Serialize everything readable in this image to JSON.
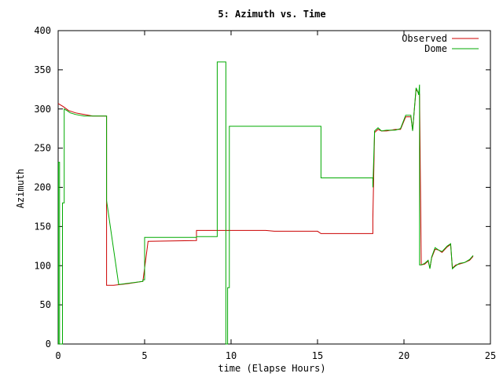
{
  "chart_data": {
    "type": "line",
    "title": "5: Azimuth vs. Time",
    "xlabel": "time (Elapse Hours)",
    "ylabel": "Azimuth",
    "xlim": [
      0,
      25
    ],
    "ylim": [
      0,
      400
    ],
    "xticks": [
      "0",
      "5",
      "10",
      "15",
      "20",
      "25"
    ],
    "yticks": [
      "0",
      "50",
      "100",
      "150",
      "200",
      "250",
      "300",
      "350",
      "400"
    ],
    "grid": false,
    "legend_position": "top-right",
    "series": [
      {
        "name": "Observed",
        "color": "#cc0000",
        "x": [
          0,
          0.3,
          0.6,
          1.0,
          1.5,
          2.0,
          2.8,
          2.8,
          3.2,
          4.0,
          4.9,
          4.9,
          5.2,
          5.2,
          8.0,
          8.0,
          10.0,
          12.0,
          12.5,
          15.0,
          15.2,
          18.2,
          18.2,
          18.3,
          18.5,
          18.7,
          19.0,
          19.5,
          19.8,
          20.1,
          20.4,
          20.5,
          20.7,
          20.8,
          20.9,
          21.0,
          21.2,
          21.4,
          21.5,
          21.6,
          21.8,
          22.0,
          22.2,
          22.5,
          22.7,
          22.8,
          23.0,
          23.2,
          23.5,
          23.8,
          24.0
        ],
        "y": [
          307,
          303,
          298,
          295,
          293,
          291,
          291,
          75,
          75,
          77,
          80,
          80,
          131,
          131,
          132,
          145,
          145,
          145,
          144,
          144,
          141,
          141,
          160,
          270,
          274,
          272,
          272,
          274,
          274,
          290,
          290,
          273,
          325,
          322,
          319,
          101,
          102,
          106,
          97,
          110,
          121,
          120,
          117,
          124,
          127,
          97,
          101,
          102,
          104,
          107,
          112
        ]
      },
      {
        "name": "Dome",
        "color": "#00aa00",
        "x": [
          0,
          0.02,
          0.02,
          0.08,
          0.08,
          0.25,
          0.25,
          0.35,
          0.35,
          0.5,
          0.7,
          1.0,
          1.5,
          2.8,
          2.8,
          3.5,
          4.9,
          4.9,
          5.0,
          5.0,
          8.0,
          8.0,
          9.2,
          9.2,
          9.7,
          9.7,
          9.8,
          9.8,
          9.9,
          9.9,
          15.2,
          15.2,
          18.2,
          18.2,
          18.3,
          18.5,
          18.7,
          19.0,
          19.5,
          19.8,
          20.1,
          20.4,
          20.5,
          20.7,
          20.8,
          20.85,
          20.9,
          20.9,
          21.0,
          21.2,
          21.4,
          21.5,
          21.6,
          21.8,
          22.0,
          22.2,
          22.5,
          22.7,
          22.8,
          23.0,
          23.2,
          23.5,
          23.8,
          24.0
        ],
        "y": [
          0,
          0,
          232,
          232,
          0,
          0,
          180,
          180,
          300,
          298,
          295,
          293,
          291,
          291,
          183,
          76,
          80,
          82,
          82,
          136,
          136,
          137,
          137,
          360,
          360,
          0,
          0,
          72,
          72,
          278,
          278,
          212,
          212,
          200,
          272,
          276,
          272,
          273,
          273,
          275,
          292,
          292,
          272,
          327,
          322,
          318,
          331,
          101,
          101,
          103,
          107,
          96,
          111,
          123,
          120,
          118,
          125,
          128,
          96,
          100,
          103,
          104,
          108,
          113
        ]
      }
    ]
  }
}
